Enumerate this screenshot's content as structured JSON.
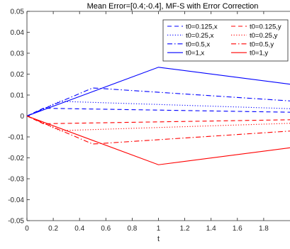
{
  "chart_data": {
    "type": "line",
    "title": "Mean Error=[0.4;-0.4], MF-S with Error Correction",
    "xlabel": "t",
    "ylabel": "",
    "xlim": [
      0,
      2
    ],
    "ylim": [
      -0.05,
      0.05
    ],
    "xticks": [
      "0",
      "0.2",
      "0.4",
      "0.6",
      "0.8",
      "1",
      "1.2",
      "1.4",
      "1.6",
      "1.8"
    ],
    "xtick_values": [
      0,
      0.2,
      0.4,
      0.6,
      0.8,
      1,
      1.2,
      1.4,
      1.6,
      1.8
    ],
    "yticks": [
      "-0.05",
      "-0.04",
      "-0.03",
      "-0.02",
      "-0.01",
      "0",
      "0.01",
      "0.02",
      "0.03",
      "0.04",
      "0.05"
    ],
    "ytick_values": [
      -0.05,
      -0.04,
      -0.03,
      -0.02,
      -0.01,
      0,
      0.01,
      0.02,
      0.03,
      0.04,
      0.05
    ],
    "grid": false,
    "legend_position": "top-right",
    "legend_columns": 2,
    "series": [
      {
        "name": "t0=0.125,x",
        "color": "#0000ff",
        "dash": "dashed",
        "x": [
          0,
          0.125,
          2
        ],
        "y": [
          0,
          0.0037,
          0.0018
        ]
      },
      {
        "name": "t0=0.125,y",
        "color": "#ff0000",
        "dash": "dashed",
        "x": [
          0,
          0.125,
          2
        ],
        "y": [
          0,
          -0.0037,
          -0.0018
        ]
      },
      {
        "name": "t0=0.25,x",
        "color": "#0000ff",
        "dash": "dotted",
        "x": [
          0,
          0.25,
          2
        ],
        "y": [
          0,
          0.007,
          0.0035
        ]
      },
      {
        "name": "t0=0.25,y",
        "color": "#ff0000",
        "dash": "dotted",
        "x": [
          0,
          0.25,
          2
        ],
        "y": [
          0,
          -0.007,
          -0.0035
        ]
      },
      {
        "name": "t0=0.5,x",
        "color": "#0000ff",
        "dash": "dashdot",
        "x": [
          0,
          0.5,
          2
        ],
        "y": [
          0,
          0.0134,
          0.0072
        ]
      },
      {
        "name": "t0=0.5,y",
        "color": "#ff0000",
        "dash": "dashdot",
        "x": [
          0,
          0.5,
          2
        ],
        "y": [
          0,
          -0.0134,
          -0.0072
        ]
      },
      {
        "name": "t0=1,x",
        "color": "#0000ff",
        "dash": "solid",
        "x": [
          0,
          1,
          2
        ],
        "y": [
          0,
          0.0233,
          0.0152
        ]
      },
      {
        "name": "t0=1,y",
        "color": "#ff0000",
        "dash": "solid",
        "x": [
          0,
          1,
          2
        ],
        "y": [
          0,
          -0.0233,
          -0.0152
        ]
      }
    ]
  }
}
